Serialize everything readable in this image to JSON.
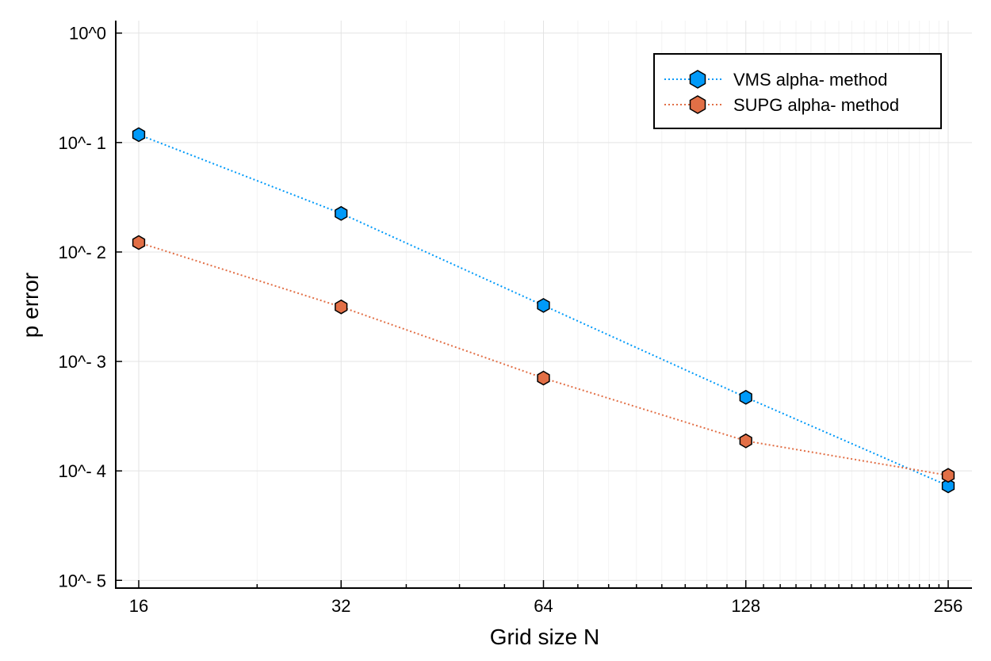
{
  "chart_data": {
    "type": "line",
    "title": "",
    "xlabel": "Grid size N",
    "ylabel": "p error",
    "x_scale": "log2",
    "y_scale": "log10",
    "x": [
      16,
      32,
      64,
      128,
      256
    ],
    "xticks": [
      "16",
      "32",
      "64",
      "128",
      "256"
    ],
    "yticks": [
      "10^0",
      "10^- 1",
      "10^- 2",
      "10^- 3",
      "10^- 4",
      "10^- 5"
    ],
    "ylim": [
      8.5e-06,
      1.3
    ],
    "grid": true,
    "legend_position": "top-right",
    "series": [
      {
        "name": "VMS alpha- method",
        "color": "#009af9",
        "marker": "hexagon",
        "line_style": "dotted",
        "values": [
          0.118,
          0.0225,
          0.00325,
          0.00047,
          7.3e-05
        ]
      },
      {
        "name": "SUPG alpha- method",
        "color": "#e26f46",
        "marker": "hexagon",
        "line_style": "dotted",
        "values": [
          0.0122,
          0.00315,
          0.000705,
          0.000188,
          9.1e-05
        ]
      }
    ]
  }
}
